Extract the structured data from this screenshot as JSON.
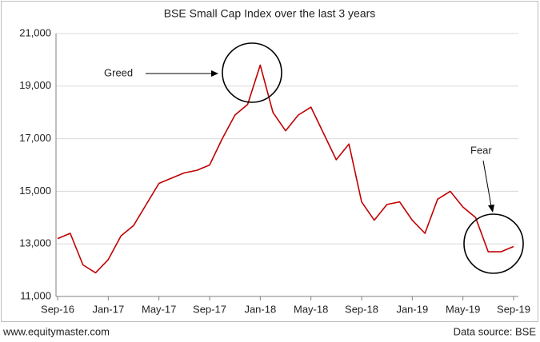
{
  "chart_data": {
    "type": "line",
    "title": "BSE Small Cap Index over the last 3 years",
    "categories": [
      "Sep-16",
      null,
      null,
      null,
      "Jan-17",
      null,
      null,
      null,
      "May-17",
      null,
      null,
      null,
      "Sep-17",
      null,
      null,
      null,
      "Jan-18",
      null,
      null,
      null,
      "May-18",
      null,
      null,
      null,
      "Sep-18",
      null,
      null,
      null,
      "Jan-19",
      null,
      null,
      null,
      "May-19",
      null,
      null,
      null,
      "Sep-19"
    ],
    "series": [
      {
        "name": "BSE Small Cap Index",
        "color": "#c00000",
        "values": [
          13200,
          13400,
          12200,
          11900,
          12400,
          13300,
          13700,
          14500,
          15300,
          15500,
          15700,
          15800,
          16000,
          17000,
          17900,
          18300,
          19800,
          18000,
          17300,
          17900,
          18200,
          17200,
          16200,
          16800,
          14600,
          13900,
          14500,
          14600,
          13900,
          13400,
          14700,
          15000,
          14400,
          14000,
          12700,
          12700,
          12900
        ]
      }
    ],
    "ylim": [
      11000,
      21000
    ],
    "yticks": [
      {
        "value": 11000,
        "label": "11,000"
      },
      {
        "value": 13000,
        "label": "13,000"
      },
      {
        "value": 15000,
        "label": "15,000"
      },
      {
        "value": 17000,
        "label": "17,000"
      },
      {
        "value": 19000,
        "label": "19,000"
      },
      {
        "value": 21000,
        "label": "21,000"
      }
    ],
    "grid": true,
    "annotations": [
      "Greed",
      "Fear"
    ],
    "footer_left": "www.equitymaster.com",
    "footer_right": "Data source: BSE"
  }
}
